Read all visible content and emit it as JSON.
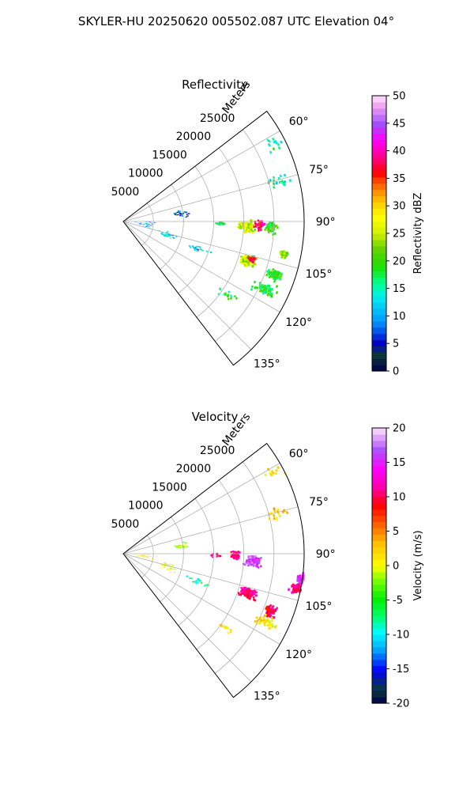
{
  "figure": {
    "title": "SKYLER-HU  20250620  005502.087 UTC Elevation 04°"
  },
  "chart_data": [
    {
      "type": "heatmap",
      "projection": "polar-sector",
      "title": "Reflectivity",
      "range_label": "Meters",
      "range_ticks": [
        "5000",
        "10000",
        "15000",
        "20000",
        "25000"
      ],
      "range_values": [
        5000,
        10000,
        15000,
        20000,
        25000
      ],
      "range_max": 30000,
      "azimuth_range": [
        52.5,
        142.5
      ],
      "azimuth_ticks": [
        "60°",
        "75°",
        "90°",
        "105°",
        "120°",
        "135°"
      ],
      "azimuth_values": [
        60,
        75,
        90,
        105,
        120,
        135
      ],
      "grid": true,
      "colorbar": {
        "label": "Reflectivity dBZ",
        "min": 0,
        "max": 50,
        "ticks": [
          "0",
          "5",
          "10",
          "15",
          "20",
          "25",
          "30",
          "35",
          "40",
          "45",
          "50"
        ],
        "tick_values": [
          0,
          5,
          10,
          15,
          20,
          25,
          30,
          35,
          40,
          45,
          50
        ]
      },
      "echoes": [
        {
          "az": 96,
          "r": 3500,
          "dr": 2500,
          "daz": 10,
          "v": 10,
          "n": 45
        },
        {
          "az": 82,
          "r": 9500,
          "dr": 1600,
          "daz": 5,
          "v": 6,
          "n": 35
        },
        {
          "az": 106,
          "r": 7500,
          "dr": 2000,
          "daz": 6,
          "v": 13,
          "n": 40
        },
        {
          "az": 110,
          "r": 13000,
          "dr": 3000,
          "daz": 3,
          "v": 12,
          "n": 22
        },
        {
          "az": 92,
          "r": 20500,
          "dr": 1800,
          "daz": 4,
          "v": 25,
          "n": 170
        },
        {
          "az": 91,
          "r": 22500,
          "dr": 1200,
          "daz": 3,
          "v": 38,
          "n": 40
        },
        {
          "az": 92,
          "r": 24500,
          "dr": 1400,
          "daz": 3,
          "v": 20,
          "n": 70
        },
        {
          "az": 107,
          "r": 21500,
          "dr": 1800,
          "daz": 3,
          "v": 25,
          "n": 130
        },
        {
          "az": 106,
          "r": 22000,
          "dr": 900,
          "daz": 1.5,
          "v": 37,
          "n": 30
        },
        {
          "az": 97,
          "r": 31500,
          "dr": 1600,
          "daz": 3,
          "v": 27,
          "n": 180
        },
        {
          "az": 100,
          "r": 31000,
          "dr": 1000,
          "daz": 2,
          "v": 40,
          "n": 40
        },
        {
          "az": 101,
          "r": 27000,
          "dr": 800,
          "daz": 1.5,
          "v": 22,
          "n": 40
        },
        {
          "az": 109,
          "r": 26500,
          "dr": 1800,
          "daz": 3,
          "v": 20,
          "n": 80
        },
        {
          "az": 115,
          "r": 26000,
          "dr": 2500,
          "daz": 3,
          "v": 18,
          "n": 50
        },
        {
          "az": 75,
          "r": 26000,
          "dr": 3000,
          "daz": 3,
          "v": 15,
          "n": 20
        },
        {
          "az": 62,
          "r": 28000,
          "dr": 2000,
          "daz": 3,
          "v": 16,
          "n": 14
        },
        {
          "az": 125,
          "r": 21000,
          "dr": 2500,
          "daz": 3,
          "v": 18,
          "n": 14
        },
        {
          "az": 91,
          "r": 16000,
          "dr": 1500,
          "daz": 2,
          "v": 17,
          "n": 18
        }
      ]
    },
    {
      "type": "heatmap",
      "projection": "polar-sector",
      "title": "Velocity",
      "range_label": "Meters",
      "range_ticks": [
        "5000",
        "10000",
        "15000",
        "20000",
        "25000"
      ],
      "range_values": [
        5000,
        10000,
        15000,
        20000,
        25000
      ],
      "range_max": 30000,
      "azimuth_range": [
        52.5,
        142.5
      ],
      "azimuth_ticks": [
        "60°",
        "75°",
        "90°",
        "105°",
        "120°",
        "135°"
      ],
      "azimuth_values": [
        60,
        75,
        90,
        105,
        120,
        135
      ],
      "grid": true,
      "colorbar": {
        "label": "Velocity (m/s)",
        "min": -20,
        "max": 20,
        "ticks": [
          "-20",
          "-15",
          "-10",
          "-5",
          "0",
          "5",
          "10",
          "15",
          "20"
        ],
        "tick_values": [
          -20,
          -15,
          -10,
          -5,
          0,
          5,
          10,
          15,
          20
        ]
      },
      "echoes": [
        {
          "az": 96,
          "r": 3500,
          "dr": 2500,
          "daz": 10,
          "v": 1,
          "n": 40
        },
        {
          "az": 82,
          "r": 9500,
          "dr": 1600,
          "daz": 5,
          "v": -1,
          "n": 30
        },
        {
          "az": 106,
          "r": 7500,
          "dr": 2000,
          "daz": 6,
          "v": 0,
          "n": 35
        },
        {
          "az": 110,
          "r": 13000,
          "dr": 3000,
          "daz": 3,
          "v": -8,
          "n": 20
        },
        {
          "az": 90.5,
          "r": 18500,
          "dr": 1200,
          "daz": 3,
          "v": 11,
          "n": 60
        },
        {
          "az": 93,
          "r": 21500,
          "dr": 1800,
          "daz": 3,
          "v": 16,
          "n": 150
        },
        {
          "az": 107,
          "r": 21500,
          "dr": 1800,
          "daz": 3,
          "v": 11,
          "n": 150
        },
        {
          "az": 98,
          "r": 30500,
          "dr": 2000,
          "daz": 3,
          "v": 15,
          "n": 170
        },
        {
          "az": 101,
          "r": 29000,
          "dr": 1200,
          "daz": 2,
          "v": 11,
          "n": 40
        },
        {
          "az": 95,
          "r": 32500,
          "dr": 800,
          "daz": 2,
          "v": -14,
          "n": 16
        },
        {
          "az": 111,
          "r": 26000,
          "dr": 1500,
          "daz": 3,
          "v": 10,
          "n": 60
        },
        {
          "az": 115,
          "r": 26000,
          "dr": 2500,
          "daz": 3,
          "v": 1,
          "n": 40
        },
        {
          "az": 75,
          "r": 26000,
          "dr": 3000,
          "daz": 3,
          "v": 3,
          "n": 18
        },
        {
          "az": 62,
          "r": 28000,
          "dr": 2000,
          "daz": 3,
          "v": 2,
          "n": 12
        },
        {
          "az": 125,
          "r": 21000,
          "dr": 2500,
          "daz": 3,
          "v": 1,
          "n": 12
        },
        {
          "az": 90.5,
          "r": 15500,
          "dr": 1500,
          "daz": 2,
          "v": 10,
          "n": 14
        }
      ]
    }
  ]
}
